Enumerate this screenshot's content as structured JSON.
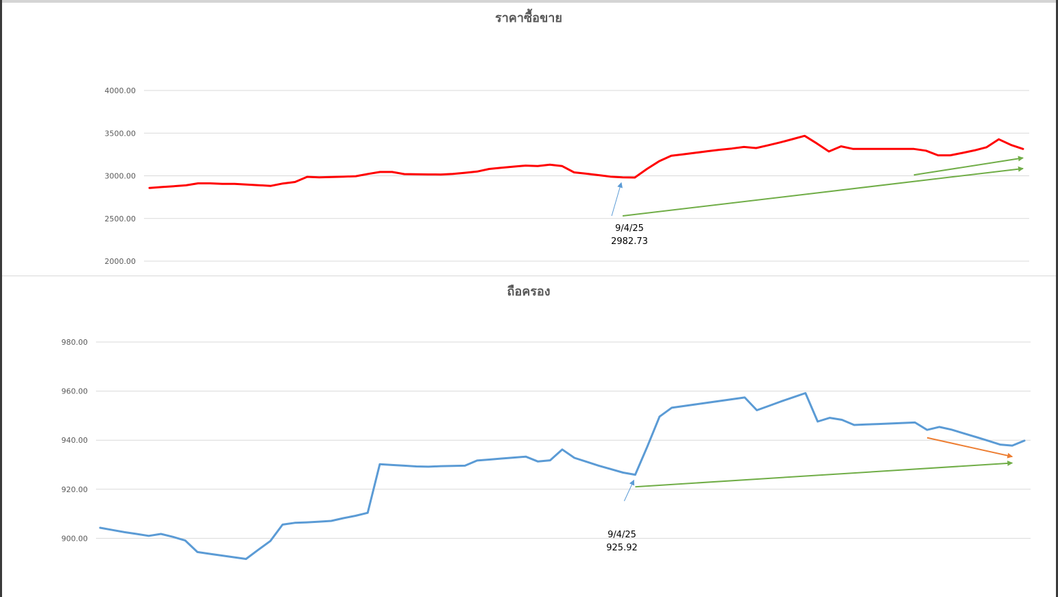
{
  "chart_data": [
    {
      "type": "line",
      "title": "ราคาซื้อขาย",
      "ylim": [
        2000,
        4000
      ],
      "yticks": [
        "4000.00",
        "3500.00",
        "3000.00",
        "2500.00",
        "2000.00"
      ],
      "ytick_values": [
        4000,
        3500,
        3000,
        2500,
        2000
      ],
      "grid": true,
      "series": [
        {
          "color": "#ff0000",
          "values": [
            2858,
            2868,
            2878,
            2888,
            2912,
            2912,
            2905,
            2905,
            2898,
            2890,
            2882,
            2910,
            2928,
            2988,
            2982,
            2986,
            2990,
            2995,
            3022,
            3045,
            3045,
            3020,
            3018,
            3016,
            3015,
            3022,
            3035,
            3050,
            3080,
            3095,
            3108,
            3120,
            3115,
            3130,
            3115,
            3040,
            3025,
            3008,
            2990,
            2982.73,
            2980,
            3080,
            3170,
            3235,
            3252,
            3270,
            3288,
            3305,
            3320,
            3338,
            3325,
            3358,
            3392,
            3430,
            3468,
            3380,
            3285,
            3345,
            3315,
            3315,
            3315,
            3315,
            3315,
            3315,
            3295,
            3240,
            3240,
            3268,
            3298,
            3335,
            3428,
            3362,
            3315
          ]
        }
      ],
      "annotations": [
        {
          "date": "9/4/25",
          "value": "2982.73",
          "color": "#5b9bd5"
        }
      ],
      "trend_arrows": [
        {
          "color": "#70ad47",
          "from": [
            39,
            2530
          ],
          "to": [
            72,
            3085
          ]
        },
        {
          "color": "#70ad47",
          "from": [
            63,
            3010
          ],
          "to": [
            72,
            3210
          ]
        }
      ]
    },
    {
      "type": "line",
      "title": "ถือครอง",
      "ylim": [
        880,
        980
      ],
      "yticks": [
        "980.00",
        "960.00",
        "940.00",
        "920.00",
        "900.00"
      ],
      "ytick_values": [
        980,
        960,
        940,
        920,
        900
      ],
      "grid": true,
      "series": [
        {
          "color": "#5b9bd5",
          "values": [
            904.3,
            903.4,
            902.5,
            901.8,
            901.0,
            901.8,
            900.6,
            899.1,
            894.4,
            893.7,
            893.0,
            892.3,
            891.6,
            895.3,
            898.9,
            905.6,
            906.3,
            906.5,
            906.8,
            907.1,
            908.2,
            909.2,
            910.4,
            930.2,
            929.9,
            929.6,
            929.3,
            929.2,
            929.4,
            929.5,
            929.6,
            931.7,
            932.1,
            932.5,
            932.9,
            933.3,
            931.3,
            931.8,
            936.2,
            932.8,
            931.2,
            929.6,
            928.2,
            926.8,
            925.92,
            937.5,
            949.6,
            953.2,
            953.9,
            954.6,
            955.3,
            956.0,
            956.7,
            957.4,
            952.2,
            954.0,
            955.8,
            957.5,
            959.2,
            947.6,
            949.1,
            948.3,
            946.2,
            946.4,
            946.6,
            946.8,
            947.0,
            947.2,
            944.2,
            945.4,
            944.3,
            942.8,
            941.3,
            939.8,
            938.2,
            937.8,
            939.8
          ]
        }
      ],
      "annotations": [
        {
          "date": "9/4/25",
          "value": "925.92",
          "color": "#5b9bd5"
        }
      ],
      "trend_arrows": [
        {
          "color": "#70ad47",
          "from": [
            44,
            921.0
          ],
          "to": [
            75,
            930.7
          ]
        },
        {
          "color": "#ed7d31",
          "from": [
            68,
            941.0
          ],
          "to": [
            75,
            933.3
          ]
        }
      ]
    }
  ]
}
